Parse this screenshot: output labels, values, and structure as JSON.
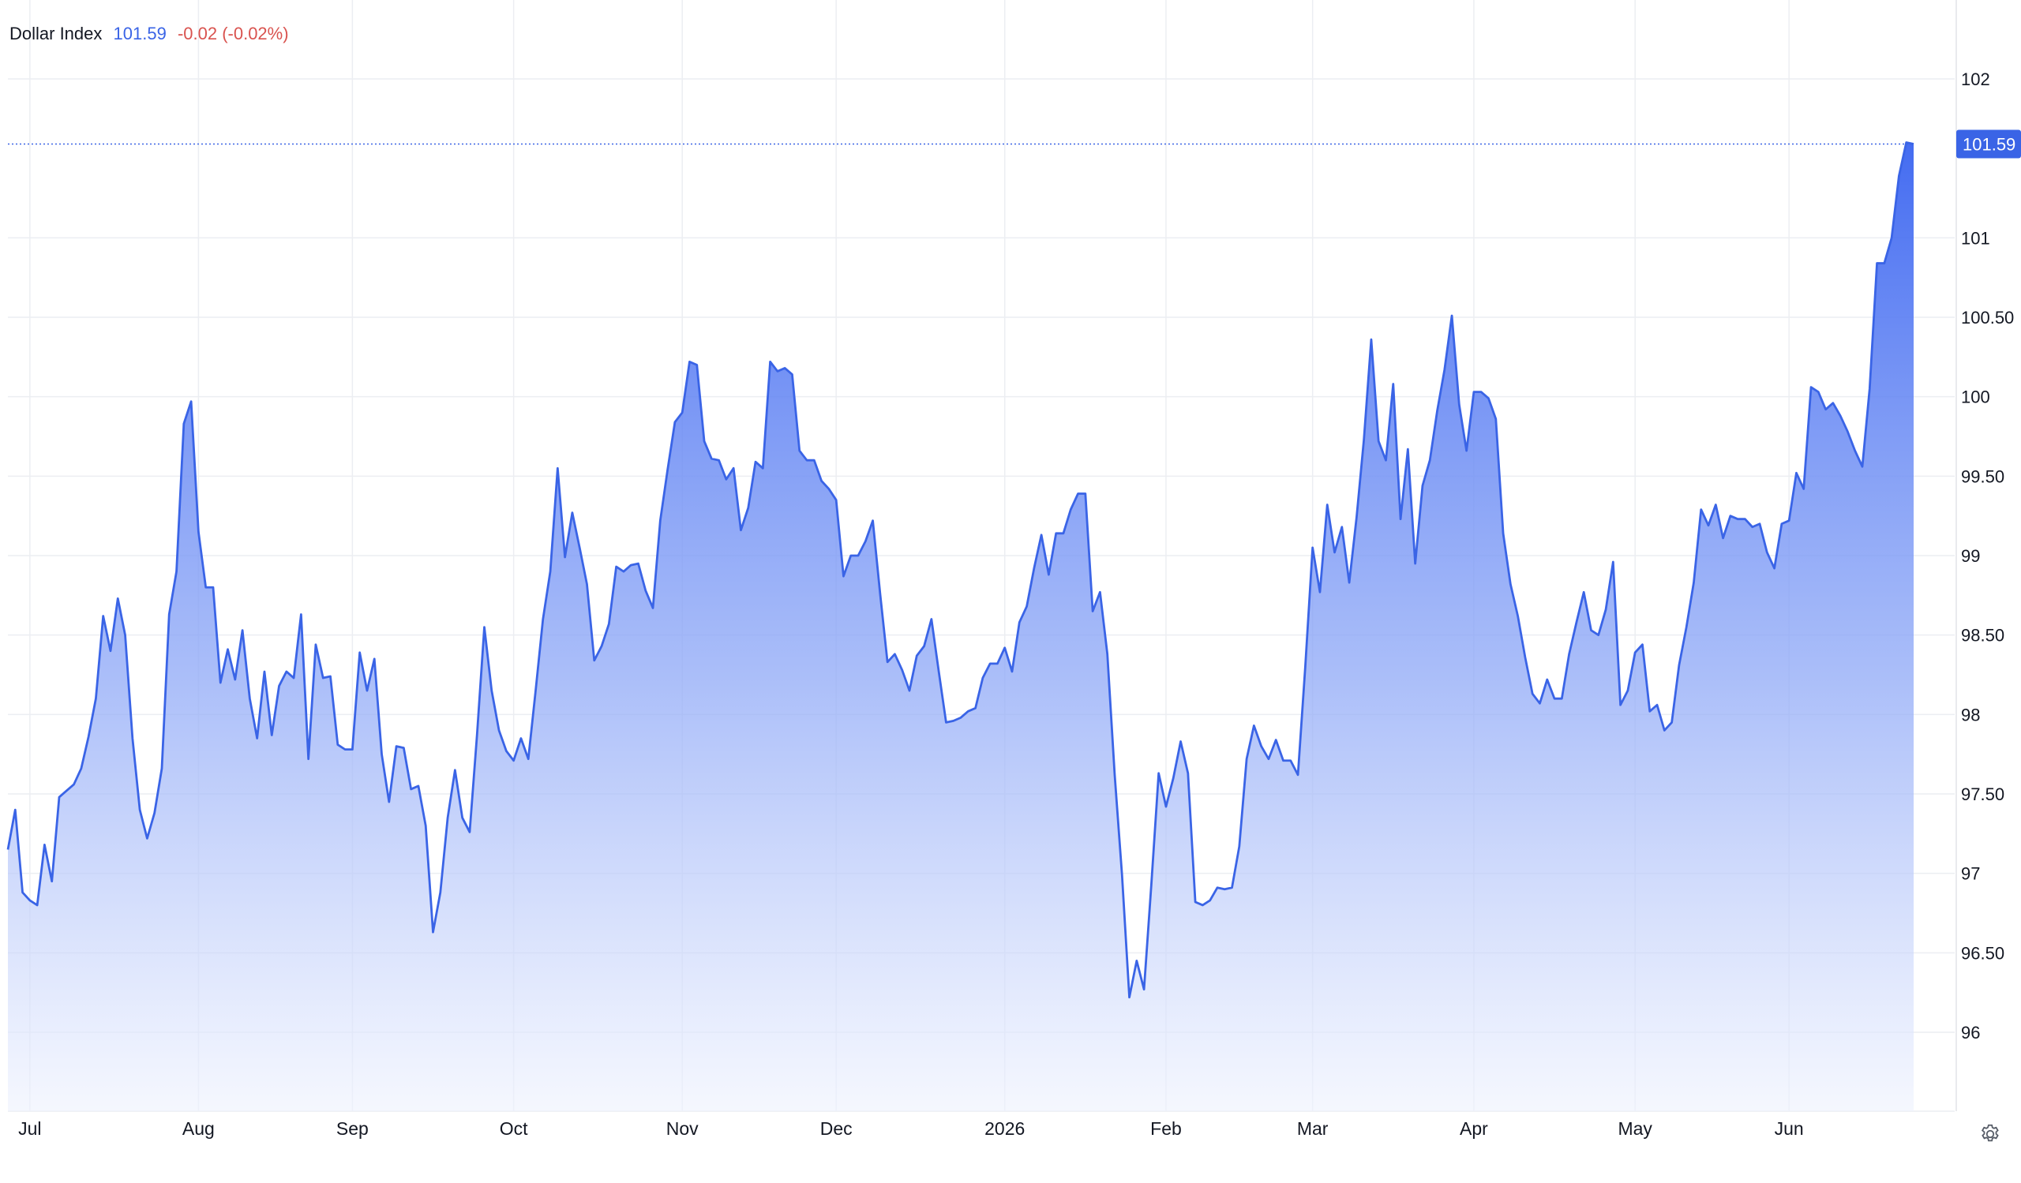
{
  "legend": {
    "name": "Dollar Index",
    "value": "101.59",
    "change": "-0.02 (-0.02%)"
  },
  "colors": {
    "line": "#3a64e6",
    "fill_top": "#3a64f0",
    "fill_bottom": "#eef2fe",
    "grid": "#eceef2",
    "change_down": "#d9534f"
  },
  "settings_icon": "gear-icon",
  "chart_data": {
    "type": "area",
    "title": "Dollar Index",
    "last_value": 101.59,
    "last_label": "101.59",
    "ylim": [
      95.5,
      102.4
    ],
    "ylabels": [
      {
        "v": 102,
        "t": "102"
      },
      {
        "v": 101,
        "t": "101"
      },
      {
        "v": 100.5,
        "t": "100.50"
      },
      {
        "v": 100,
        "t": "100"
      },
      {
        "v": 99.5,
        "t": "99.50"
      },
      {
        "v": 99,
        "t": "99"
      },
      {
        "v": 98.5,
        "t": "98.50"
      },
      {
        "v": 98,
        "t": "98"
      },
      {
        "v": 97.5,
        "t": "97.50"
      },
      {
        "v": 97,
        "t": "97"
      },
      {
        "v": 96.5,
        "t": "96.50"
      },
      {
        "v": 96,
        "t": "96"
      }
    ],
    "xlabels": [
      {
        "i": 3,
        "t": "Jul"
      },
      {
        "i": 26,
        "t": "Aug"
      },
      {
        "i": 47,
        "t": "Sep"
      },
      {
        "i": 69,
        "t": "Oct"
      },
      {
        "i": 92,
        "t": "Nov"
      },
      {
        "i": 113,
        "t": "Dec"
      },
      {
        "i": 136,
        "t": "2026"
      },
      {
        "i": 158,
        "t": "Feb"
      },
      {
        "i": 178,
        "t": "Mar"
      },
      {
        "i": 200,
        "t": "Apr"
      },
      {
        "i": 222,
        "t": "May"
      },
      {
        "i": 243,
        "t": "Jun"
      }
    ],
    "series": [
      {
        "values": [
          97.15,
          97.4,
          96.88,
          96.83,
          96.8,
          97.18,
          96.95,
          97.48,
          97.52,
          97.56,
          97.66,
          97.86,
          98.1,
          98.62,
          98.4,
          98.73,
          98.5,
          97.85,
          97.4,
          97.22,
          97.38,
          97.66,
          98.63,
          98.9,
          99.83,
          99.97,
          99.15,
          98.8,
          98.8,
          98.2,
          98.41,
          98.22,
          98.53,
          98.1,
          97.85,
          98.27,
          97.87,
          98.18,
          98.27,
          98.23,
          98.63,
          97.72,
          98.44,
          98.23,
          98.24,
          97.81,
          97.78,
          97.78,
          98.39,
          98.15,
          98.35,
          97.75,
          97.45,
          97.8,
          97.79,
          97.53,
          97.55,
          97.3,
          96.63,
          96.88,
          97.35,
          97.65,
          97.35,
          97.26,
          97.87,
          98.55,
          98.15,
          97.9,
          97.77,
          97.71,
          97.85,
          97.72,
          98.15,
          98.6,
          98.9,
          99.55,
          98.99,
          99.27,
          99.05,
          98.82,
          98.34,
          98.43,
          98.57,
          98.93,
          98.9,
          98.94,
          98.95,
          98.78,
          98.67,
          99.22,
          99.54,
          99.84,
          99.9,
          100.22,
          100.2,
          99.72,
          99.61,
          99.6,
          99.48,
          99.55,
          99.16,
          99.3,
          99.59,
          99.55,
          100.22,
          100.16,
          100.18,
          100.14,
          99.66,
          99.6,
          99.6,
          99.47,
          99.42,
          99.35,
          98.87,
          99.0,
          99.0,
          99.09,
          99.22,
          98.76,
          98.33,
          98.38,
          98.28,
          98.15,
          98.37,
          98.43,
          98.6,
          98.27,
          97.95,
          97.96,
          97.98,
          98.02,
          98.04,
          98.23,
          98.32,
          98.32,
          98.42,
          98.27,
          98.58,
          98.68,
          98.92,
          99.13,
          98.88,
          99.14,
          99.14,
          99.29,
          99.39,
          99.39,
          98.65,
          98.77,
          98.38,
          97.62,
          96.99,
          96.22,
          96.45,
          96.27,
          96.93,
          97.63,
          97.42,
          97.6,
          97.83,
          97.63,
          96.82,
          96.8,
          96.83,
          96.91,
          96.9,
          96.91,
          97.17,
          97.72,
          97.93,
          97.8,
          97.72,
          97.84,
          97.71,
          97.71,
          97.62,
          98.3,
          99.05,
          98.77,
          99.32,
          99.02,
          99.18,
          98.83,
          99.24,
          99.73,
          100.36,
          99.72,
          99.6,
          100.08,
          99.23,
          99.67,
          98.95,
          99.44,
          99.6,
          99.91,
          100.17,
          100.51,
          99.95,
          99.66,
          100.03,
          100.03,
          99.99,
          99.86,
          99.14,
          98.82,
          98.62,
          98.36,
          98.13,
          98.07,
          98.22,
          98.1,
          98.1,
          98.38,
          98.58,
          98.77,
          98.53,
          98.5,
          98.66,
          98.96,
          98.06,
          98.15,
          98.39,
          98.44,
          98.02,
          98.06,
          97.9,
          97.95,
          98.31,
          98.55,
          98.83,
          99.29,
          99.19,
          99.32,
          99.11,
          99.25,
          99.23,
          99.23,
          99.18,
          99.2,
          99.02,
          98.92,
          99.2,
          99.22,
          99.52,
          99.42,
          100.06,
          100.03,
          99.92,
          99.96,
          99.88,
          99.78,
          99.66,
          99.56,
          100.05,
          100.84,
          100.84,
          101.0,
          101.39,
          101.6,
          101.59
        ]
      }
    ]
  }
}
